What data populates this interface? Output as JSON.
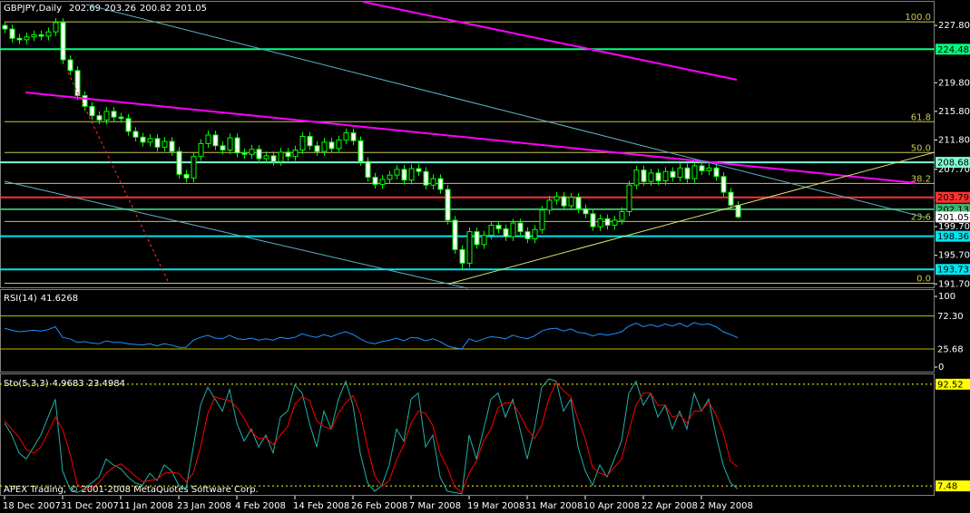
{
  "chart_data": [
    {
      "type": "candlestick",
      "title": "GBPJPY,Daily",
      "categories": [
        "18 Dec 2007",
        null,
        null,
        null,
        null,
        null,
        null,
        null,
        "31 Dec 2007",
        null,
        null,
        null,
        null,
        null,
        null,
        null,
        "11 Jan 2008",
        null,
        null,
        null,
        null,
        null,
        null,
        null,
        "23 Jan 2008",
        null,
        null,
        null,
        null,
        null,
        null,
        null,
        "4 Feb 2008",
        null,
        null,
        null,
        null,
        null,
        null,
        null,
        "14 Feb 2008",
        null,
        null,
        null,
        null,
        null,
        null,
        null,
        "26 Feb 2008",
        null,
        null,
        null,
        null,
        null,
        null,
        null,
        "7 Mar 2008",
        null,
        null,
        null,
        null,
        null,
        null,
        null,
        "19 Mar 2008",
        null,
        null,
        null,
        null,
        null,
        null,
        null,
        "31 Mar 2008",
        null,
        null,
        null,
        null,
        null,
        null,
        null,
        "10 Apr 2008",
        null,
        null,
        null,
        null,
        null,
        null,
        null,
        "22 Apr 2008",
        null,
        null,
        null,
        null,
        null,
        null,
        null,
        "2 May 2008",
        null,
        null,
        null,
        null,
        null
      ],
      "open": [
        227.8,
        227.3,
        226.0,
        225.8,
        226.2,
        226.5,
        226.3,
        226.9,
        228.2,
        223.0,
        221.5,
        218.0,
        216.5,
        215.2,
        214.6,
        215.8,
        215.0,
        214.8,
        213.0,
        212.2,
        211.5,
        212.0,
        210.8,
        211.6,
        210.2,
        207.0,
        206.5,
        209.5,
        211.3,
        212.5,
        211.0,
        210.4,
        212.1,
        210.0,
        209.8,
        210.5,
        209.2,
        209.6,
        208.8,
        210.1,
        209.5,
        210.4,
        212.3,
        211.0,
        210.2,
        211.5,
        210.6,
        211.8,
        212.8,
        211.7,
        208.8,
        206.6,
        205.6,
        206.3,
        206.9,
        207.7,
        206.2,
        207.8,
        207.4,
        205.5,
        206.4,
        204.9,
        200.6,
        196.5,
        194.6,
        199.0,
        197.2,
        198.5,
        199.9,
        199.4,
        198.3,
        200.2,
        199.0,
        198.0,
        199.3,
        202.0,
        203.4,
        203.9,
        202.6,
        203.8,
        202.2,
        201.5,
        199.7,
        200.8,
        199.9,
        200.6,
        201.8,
        205.5,
        207.6,
        206.0,
        207.2,
        206.1,
        207.4,
        206.6,
        207.9,
        206.4,
        208.2,
        207.5,
        207.9,
        206.7,
        204.5,
        202.69
      ],
      "high": [
        228.4,
        227.9,
        226.6,
        226.8,
        227.1,
        227.1,
        227.5,
        228.8,
        228.8,
        223.6,
        222.1,
        218.6,
        217.1,
        215.8,
        216.4,
        216.4,
        215.6,
        215.4,
        213.6,
        212.8,
        212.6,
        212.6,
        212.2,
        212.2,
        210.8,
        207.6,
        210.1,
        211.9,
        213.1,
        213.1,
        211.6,
        212.7,
        212.7,
        210.6,
        211.1,
        211.1,
        210.2,
        210.2,
        210.7,
        210.7,
        211.0,
        212.9,
        212.9,
        211.6,
        212.1,
        212.1,
        212.4,
        213.4,
        213.4,
        212.3,
        209.4,
        207.2,
        206.9,
        207.5,
        208.3,
        208.3,
        208.4,
        208.4,
        208.0,
        207.0,
        207.0,
        205.5,
        201.2,
        197.1,
        199.6,
        199.6,
        199.1,
        200.5,
        200.5,
        200.0,
        200.8,
        200.8,
        199.6,
        199.9,
        202.6,
        204.0,
        204.5,
        204.5,
        204.4,
        204.4,
        202.8,
        202.1,
        201.4,
        201.4,
        201.2,
        202.4,
        206.1,
        208.2,
        208.2,
        207.8,
        207.8,
        208.0,
        208.0,
        208.5,
        208.5,
        208.8,
        208.8,
        208.5,
        208.5,
        207.3,
        205.1,
        203.26
      ],
      "low": [
        226.7,
        225.4,
        225.2,
        225.2,
        225.6,
        225.7,
        225.7,
        226.3,
        222.4,
        220.9,
        217.4,
        215.9,
        214.6,
        214.0,
        214.0,
        214.4,
        214.2,
        212.4,
        211.6,
        210.9,
        210.9,
        210.2,
        210.2,
        209.6,
        206.4,
        205.9,
        205.9,
        208.9,
        210.7,
        210.4,
        209.8,
        209.8,
        209.4,
        209.2,
        209.2,
        208.6,
        208.6,
        208.2,
        208.2,
        208.9,
        208.9,
        209.8,
        210.4,
        209.6,
        209.6,
        210.0,
        210.0,
        211.2,
        211.1,
        208.2,
        206.0,
        205.0,
        205.0,
        205.7,
        206.3,
        205.6,
        205.6,
        206.8,
        204.9,
        204.9,
        204.3,
        200.0,
        195.9,
        193.8,
        194.0,
        196.6,
        196.6,
        197.9,
        198.8,
        197.7,
        197.7,
        198.4,
        197.4,
        197.4,
        198.7,
        201.4,
        202.8,
        202.0,
        202.0,
        201.6,
        200.9,
        199.1,
        199.1,
        199.3,
        199.3,
        200.0,
        201.2,
        204.9,
        205.4,
        205.4,
        205.5,
        205.5,
        206.0,
        206.0,
        205.8,
        205.8,
        206.9,
        206.9,
        206.1,
        203.9,
        202.1,
        200.82
      ],
      "close": [
        227.3,
        226.0,
        225.8,
        226.2,
        226.5,
        226.3,
        226.9,
        228.2,
        223.0,
        221.5,
        218.0,
        216.5,
        215.2,
        214.6,
        215.8,
        215.0,
        214.8,
        213.0,
        212.2,
        211.5,
        212.0,
        210.8,
        211.6,
        210.2,
        207.0,
        206.5,
        209.5,
        211.3,
        212.5,
        211.0,
        210.4,
        212.1,
        210.0,
        209.8,
        210.5,
        209.2,
        209.6,
        208.8,
        210.1,
        209.5,
        210.4,
        212.3,
        211.0,
        210.2,
        211.5,
        210.6,
        211.8,
        212.8,
        211.7,
        208.8,
        206.6,
        205.6,
        206.3,
        206.9,
        207.7,
        206.2,
        207.8,
        207.4,
        205.5,
        206.4,
        204.9,
        200.6,
        196.5,
        194.6,
        199.0,
        197.2,
        198.5,
        199.9,
        199.4,
        198.3,
        200.2,
        199.0,
        198.0,
        199.3,
        202.0,
        203.4,
        203.9,
        202.6,
        203.8,
        202.2,
        201.5,
        199.7,
        200.8,
        199.9,
        200.6,
        201.8,
        205.5,
        207.6,
        206.0,
        207.2,
        206.1,
        207.4,
        206.6,
        207.9,
        206.4,
        208.2,
        207.5,
        207.9,
        206.7,
        204.5,
        202.7,
        201.05
      ],
      "up_color": "#000000",
      "down_color": "#ffffff",
      "outline_color": "#00ff00",
      "ylim": [
        191.1,
        231.1
      ],
      "yticks": [
        {
          "value": 191.7,
          "label": "191.70"
        },
        {
          "value": 195.7,
          "label": "195.70"
        },
        {
          "value": 199.7,
          "label": "199.70"
        },
        {
          "value": 207.7,
          "label": "207.70"
        },
        {
          "value": 211.8,
          "label": "211.80"
        },
        {
          "value": 215.8,
          "label": "215.80"
        },
        {
          "value": 219.8,
          "label": "219.80"
        },
        {
          "value": 227.8,
          "label": "227.80"
        }
      ],
      "hlines": [
        {
          "value": 224.48,
          "color": "#00ff7f"
        },
        {
          "value": 208.68,
          "color": "#7fffd4"
        },
        {
          "value": 203.79,
          "color": "#ff3030"
        },
        {
          "value": 202.13,
          "color": "#3cb371"
        },
        {
          "value": 198.36,
          "color": "#00e5ee"
        },
        {
          "value": 193.73,
          "color": "#00e5ee"
        }
      ],
      "fibo": {
        "range": [
          191.8,
          228.3
        ],
        "color": "#c8c850",
        "levels": [
          {
            "value": 100,
            "label": "100.0"
          },
          61.8,
          {
            "value": 50,
            "label": "50.0"
          },
          38.2,
          23.6,
          {
            "value": 0,
            "label": "0.0"
          }
        ]
      }
    },
    {
      "type": "line",
      "title": "RSI(14)",
      "series": [
        {
          "color": "#1e90ff",
          "values": [
            55,
            52,
            50,
            51,
            52,
            51,
            53,
            57,
            42,
            40,
            35,
            36,
            34,
            33,
            37,
            35,
            35,
            33,
            32,
            31,
            33,
            30,
            33,
            31,
            28,
            28,
            38,
            42,
            45,
            41,
            40,
            45,
            40,
            39,
            41,
            38,
            40,
            38,
            42,
            40,
            42,
            47,
            44,
            42,
            46,
            43,
            47,
            50,
            46,
            40,
            35,
            33,
            36,
            38,
            41,
            37,
            42,
            41,
            37,
            40,
            36,
            30,
            27,
            26,
            40,
            36,
            40,
            43,
            42,
            40,
            45,
            42,
            40,
            44,
            51,
            54,
            55,
            51,
            54,
            49,
            48,
            44,
            47,
            45,
            47,
            50,
            58,
            62,
            57,
            60,
            57,
            61,
            58,
            62,
            57,
            63,
            60,
            61,
            57,
            50,
            46,
            41.6268
          ]
        }
      ],
      "ylim": [
        0,
        100
      ],
      "yticks": [
        0,
        100
      ],
      "levels": [
        {
          "value": 72.3,
          "label": "72.30"
        },
        25.68
      ],
      "level_color": "#c0c000"
    },
    {
      "type": "line",
      "title": "Sto(5,3,3)",
      "series": [
        {
          "color": "#20b2aa",
          "values": [
            60,
            50,
            35,
            30,
            40,
            50,
            65,
            80,
            20,
            5,
            2,
            5,
            10,
            15,
            30,
            25,
            22,
            15,
            10,
            8,
            18,
            12,
            25,
            20,
            8,
            5,
            40,
            75,
            90,
            80,
            70,
            88,
            60,
            45,
            55,
            40,
            50,
            35,
            65,
            70,
            92,
            85,
            60,
            40,
            70,
            55,
            80,
            95,
            75,
            35,
            10,
            3,
            8,
            25,
            55,
            45,
            80,
            85,
            40,
            50,
            15,
            3,
            2,
            1,
            50,
            30,
            55,
            80,
            85,
            65,
            80,
            55,
            30,
            55,
            90,
            97,
            95,
            70,
            80,
            40,
            20,
            8,
            25,
            15,
            30,
            45,
            85,
            95,
            75,
            85,
            65,
            75,
            55,
            70,
            55,
            85,
            70,
            80,
            50,
            25,
            10,
            4.9683
          ]
        },
        {
          "color": "#ff0000",
          "values": [
            62,
            55,
            48,
            38,
            35,
            40,
            52,
            65,
            55,
            35,
            9,
            4,
            6,
            10,
            18,
            23,
            26,
            21,
            16,
            11,
            12,
            13,
            18,
            19,
            18,
            11,
            18,
            40,
            68,
            82,
            80,
            79,
            73,
            64,
            53,
            47,
            48,
            42,
            50,
            57,
            76,
            82,
            79,
            62,
            57,
            55,
            68,
            77,
            83,
            68,
            40,
            16,
            7,
            12,
            29,
            42,
            60,
            70,
            68,
            58,
            35,
            23,
            7,
            2,
            18,
            28,
            45,
            55,
            73,
            77,
            77,
            67,
            55,
            47,
            58,
            81,
            94,
            87,
            82,
            63,
            47,
            23,
            18,
            16,
            23,
            30,
            53,
            75,
            85,
            85,
            75,
            75,
            65,
            67,
            60,
            70,
            70,
            78,
            67,
            52,
            28,
            23.4984
          ]
        }
      ],
      "ylim": [
        0,
        100
      ],
      "levels": [
        92.52,
        7.48
      ],
      "level_color": "#ffff00",
      "annotation": "APEX Trading, © 2001-2008 MetaQuotes Software Corp."
    }
  ]
}
